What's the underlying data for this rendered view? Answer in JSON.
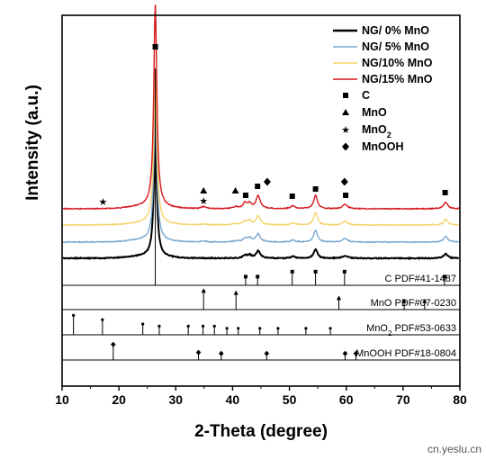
{
  "chart_data": {
    "type": "line",
    "xlabel": "2-Theta (degree)",
    "ylabel": "Intensity (a.u.)",
    "xlim": [
      10,
      80
    ],
    "x_ticks": [
      "10",
      "20",
      "30",
      "40",
      "50",
      "60",
      "70",
      "80"
    ],
    "legend_position": "top-right",
    "series": [
      {
        "name": "NG/  0% MnO",
        "color": "#000000"
      },
      {
        "name": "NG/  5% MnO",
        "color": "#7aa7cf"
      },
      {
        "name": "NG/10% MnO",
        "color": "#f5d36b"
      },
      {
        "name": "NG/15% MnO",
        "color": "#d6171c"
      }
    ],
    "phase_markers": [
      {
        "name": "C",
        "symbol": "square",
        "positions": [
          26.4,
          42.3,
          44.4,
          50.5,
          54.6,
          59.9,
          77.4
        ]
      },
      {
        "name": "MnO",
        "symbol": "triangle",
        "positions": [
          34.9,
          40.5
        ]
      },
      {
        "name": "MnO",
        "sub": "2",
        "symbol": "star",
        "positions": [
          17.2,
          34.9
        ]
      },
      {
        "name": "MnOOH",
        "symbol": "diamond",
        "positions": [
          46.1,
          59.7
        ]
      }
    ],
    "reference_patterns": [
      {
        "label": "C PDF#41-1487",
        "peaks": [
          [
            26.4,
            1.0
          ],
          [
            42.3,
            0.42
          ],
          [
            44.4,
            0.42
          ],
          [
            50.5,
            0.66
          ],
          [
            54.6,
            0.66
          ],
          [
            59.7,
            0.66
          ],
          [
            77.3,
            0.42
          ]
        ]
      },
      {
        "label": "MnO PDF#07-0230",
        "peaks": [
          [
            34.9,
            0.9
          ],
          [
            40.6,
            0.8
          ],
          [
            58.7,
            0.55
          ],
          [
            70.2,
            0.4
          ],
          [
            73.8,
            0.4
          ]
        ]
      },
      {
        "label": "MnO",
        "label_sub": "2",
        "label_suffix": " PDF#53-0633",
        "peaks": [
          [
            12.0,
            0.9
          ],
          [
            17.1,
            0.7
          ],
          [
            24.2,
            0.5
          ],
          [
            27.1,
            0.4
          ],
          [
            32.2,
            0.4
          ],
          [
            34.8,
            0.4
          ],
          [
            36.8,
            0.4
          ],
          [
            39.0,
            0.3
          ],
          [
            41.0,
            0.3
          ],
          [
            44.8,
            0.3
          ],
          [
            48.0,
            0.3
          ],
          [
            52.9,
            0.3
          ],
          [
            57.2,
            0.3
          ]
        ]
      },
      {
        "label": "MnOOH PDF#18-0804",
        "peaks": [
          [
            19.0,
            0.72
          ],
          [
            34.0,
            0.35
          ],
          [
            38.0,
            0.3
          ],
          [
            46.0,
            0.3
          ],
          [
            59.8,
            0.3
          ],
          [
            61.7,
            0.3
          ]
        ]
      }
    ]
  },
  "watermark": "cn.yeslu.cn"
}
